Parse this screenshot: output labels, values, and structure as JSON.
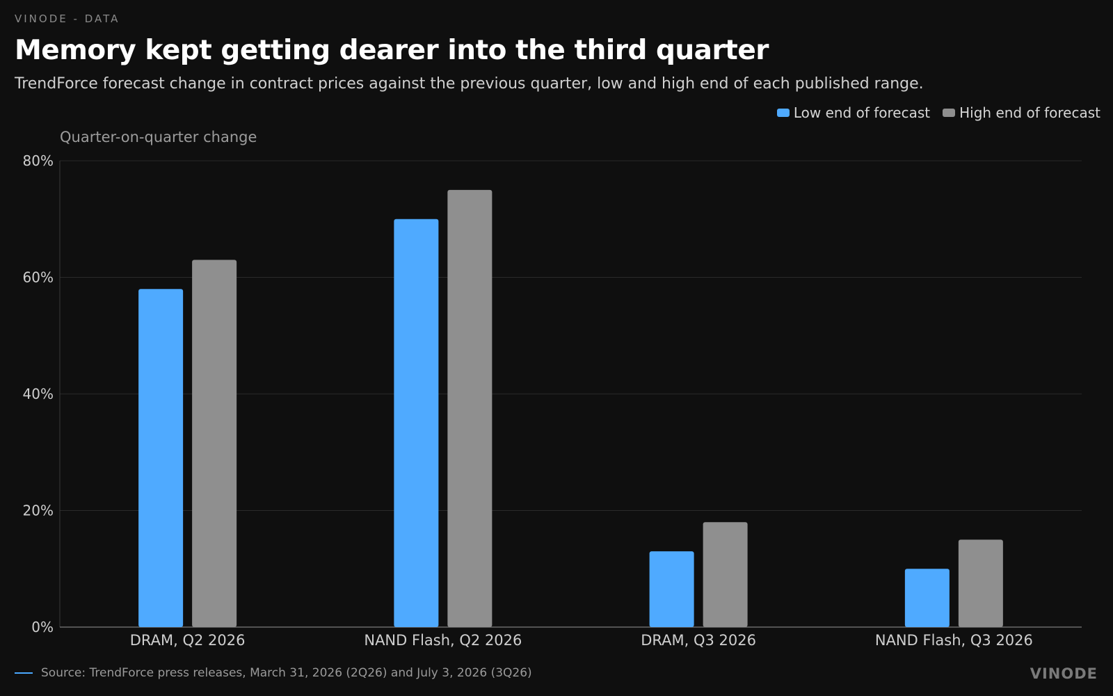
{
  "header": {
    "kicker": "VINODE - DATA",
    "title": "Memory kept getting dearer into the third quarter",
    "subtitle": "TrendForce forecast change in contract prices against the previous quarter, low and high end of each published range."
  },
  "colors": {
    "low": "#4faaff",
    "high": "#8f8f8f",
    "grid": "#2a2a2a",
    "axis": "#cfcfcf"
  },
  "chart_data": {
    "type": "bar",
    "ylabel": "Quarter-on-quarter change",
    "categories": [
      "DRAM, Q2 2026",
      "NAND Flash, Q2 2026",
      "DRAM, Q3 2026",
      "NAND Flash, Q3 2026"
    ],
    "series": [
      {
        "name": "Low end of forecast",
        "values": [
          58,
          70,
          13,
          10
        ]
      },
      {
        "name": "High end of forecast",
        "values": [
          63,
          75,
          18,
          15
        ]
      }
    ],
    "ylim": [
      0,
      80
    ],
    "yticks": [
      0,
      20,
      40,
      60,
      80
    ],
    "ytick_labels": [
      "0%",
      "20%",
      "40%",
      "60%",
      "80%"
    ],
    "grid": true,
    "legend": "top-right"
  },
  "footer": {
    "source": "Source: TrendForce press releases, March 31, 2026 (2Q26) and July 3, 2026 (3Q26)",
    "brand": "VINODE"
  }
}
